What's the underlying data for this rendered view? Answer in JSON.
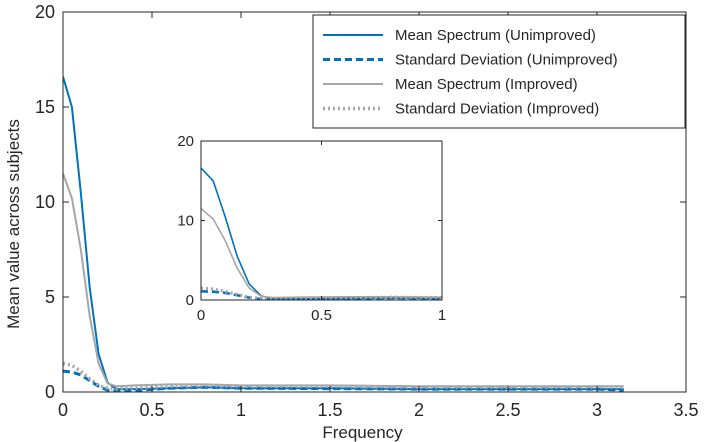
{
  "chart_data": [
    {
      "type": "line",
      "panel": "main",
      "xlabel": "Frequency",
      "ylabel": "Mean value across subjects",
      "xlim": [
        0,
        3.5
      ],
      "ylim": [
        0,
        20
      ],
      "xticks": [
        0,
        0.5,
        1,
        1.5,
        2,
        2.5,
        3,
        3.5
      ],
      "yticks": [
        0,
        5,
        10,
        15,
        20
      ],
      "xtick_labels": [
        "0",
        "0.5",
        "1",
        "1.5",
        "2",
        "2.5",
        "3",
        "3.5"
      ],
      "ytick_labels": [
        "0",
        "5",
        "10",
        "15",
        "20"
      ],
      "grid": false,
      "legend_location": "top-right",
      "series": [
        {
          "name": "Mean Spectrum (Unimproved)",
          "color": "#0072bd",
          "style": "solid",
          "x": [
            0,
            0.05,
            0.1,
            0.15,
            0.2,
            0.25,
            0.3,
            0.4,
            0.6,
            0.8,
            1.0,
            1.5,
            2.0,
            2.5,
            3.0,
            3.15
          ],
          "y": [
            16.6,
            15.0,
            10.5,
            5.5,
            2.0,
            0.5,
            0.15,
            0.15,
            0.2,
            0.25,
            0.2,
            0.2,
            0.15,
            0.15,
            0.15,
            0.15
          ]
        },
        {
          "name": "Standard Deviation (Unimproved)",
          "color": "#0072bd",
          "style": "dashed",
          "x": [
            0,
            0.05,
            0.1,
            0.15,
            0.2,
            0.25,
            0.3,
            0.4,
            0.6,
            0.8,
            1.0,
            1.5,
            2.0,
            2.5,
            3.0,
            3.15
          ],
          "y": [
            1.1,
            1.05,
            0.9,
            0.6,
            0.3,
            0.1,
            0.05,
            0.08,
            0.2,
            0.25,
            0.2,
            0.18,
            0.15,
            0.15,
            0.15,
            0.1
          ]
        },
        {
          "name": "Mean Spectrum (Improved)",
          "color": "#a6a6a6",
          "style": "solid",
          "x": [
            0,
            0.05,
            0.1,
            0.15,
            0.2,
            0.25,
            0.3,
            0.4,
            0.6,
            0.8,
            1.0,
            1.5,
            2.0,
            2.5,
            3.0,
            3.15
          ],
          "y": [
            11.5,
            10.2,
            7.5,
            4.0,
            1.5,
            0.45,
            0.3,
            0.35,
            0.4,
            0.4,
            0.35,
            0.35,
            0.3,
            0.3,
            0.3,
            0.3
          ]
        },
        {
          "name": "Standard Deviation (Improved)",
          "color": "#a6a6a6",
          "style": "dotted",
          "x": [
            0,
            0.05,
            0.1,
            0.15,
            0.2,
            0.25,
            0.3,
            0.4,
            0.6,
            0.8,
            1.0,
            1.5,
            2.0,
            2.5,
            3.0,
            3.15
          ],
          "y": [
            1.5,
            1.4,
            1.1,
            0.7,
            0.35,
            0.2,
            0.15,
            0.2,
            0.3,
            0.35,
            0.3,
            0.3,
            0.25,
            0.25,
            0.25,
            0.25
          ]
        }
      ]
    },
    {
      "type": "line",
      "panel": "inset",
      "xlim": [
        0,
        1
      ],
      "ylim": [
        0,
        20
      ],
      "xticks": [
        0,
        0.5,
        1
      ],
      "yticks": [
        0,
        10,
        20
      ],
      "xtick_labels": [
        "0",
        "0.5",
        "1"
      ],
      "ytick_labels": [
        "0",
        "10",
        "20"
      ],
      "grid": false,
      "series": [
        {
          "color": "#0072bd",
          "style": "solid",
          "x": [
            0,
            0.05,
            0.1,
            0.15,
            0.2,
            0.25,
            0.3,
            0.4,
            0.6,
            0.8,
            1.0
          ],
          "y": [
            16.6,
            15.0,
            10.5,
            5.5,
            2.0,
            0.5,
            0.15,
            0.15,
            0.2,
            0.25,
            0.2
          ]
        },
        {
          "color": "#0072bd",
          "style": "dashed",
          "x": [
            0,
            0.05,
            0.1,
            0.15,
            0.2,
            0.25,
            0.3,
            0.4,
            0.6,
            0.8,
            1.0
          ],
          "y": [
            1.1,
            1.05,
            0.9,
            0.6,
            0.3,
            0.1,
            0.05,
            0.08,
            0.2,
            0.25,
            0.2
          ]
        },
        {
          "color": "#a6a6a6",
          "style": "solid",
          "x": [
            0,
            0.05,
            0.1,
            0.15,
            0.2,
            0.25,
            0.3,
            0.4,
            0.6,
            0.8,
            1.0
          ],
          "y": [
            11.5,
            10.2,
            7.5,
            4.0,
            1.5,
            0.45,
            0.3,
            0.35,
            0.4,
            0.4,
            0.35
          ]
        },
        {
          "color": "#a6a6a6",
          "style": "dotted",
          "x": [
            0,
            0.05,
            0.1,
            0.15,
            0.2,
            0.25,
            0.3,
            0.4,
            0.6,
            0.8,
            1.0
          ],
          "y": [
            1.5,
            1.4,
            1.1,
            0.7,
            0.35,
            0.2,
            0.15,
            0.2,
            0.3,
            0.35,
            0.3
          ]
        }
      ]
    }
  ]
}
